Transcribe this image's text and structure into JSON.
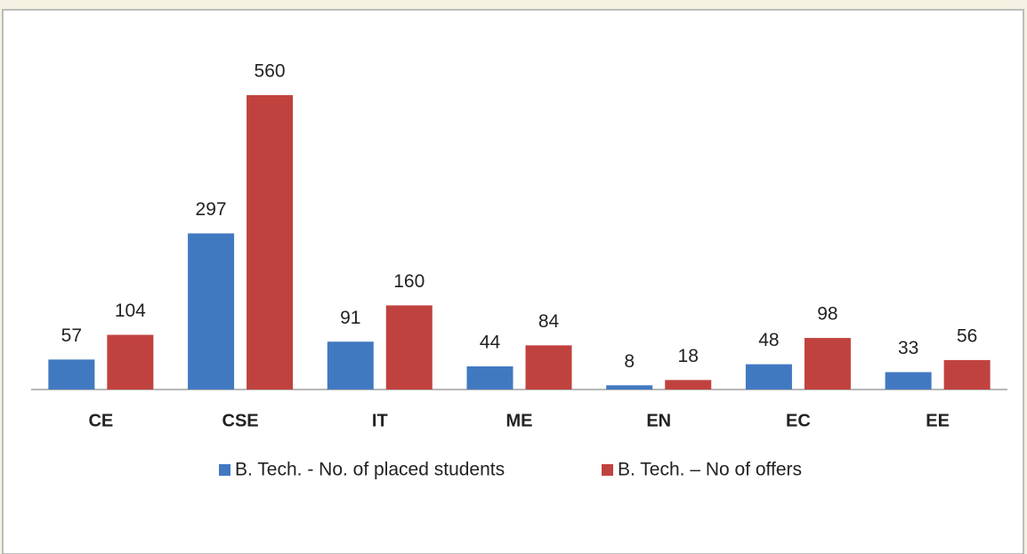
{
  "chart_data": {
    "type": "bar",
    "categories": [
      "CE",
      "CSE",
      "IT",
      "ME",
      "EN",
      "EC",
      "EE"
    ],
    "series": [
      {
        "name": "B. Tech. - No. of placed students",
        "color": "#4179c1",
        "values": [
          57,
          297,
          91,
          44,
          8,
          48,
          33
        ]
      },
      {
        "name": "B. Tech. – No of offers",
        "color": "#c0423f",
        "values": [
          104,
          560,
          160,
          84,
          18,
          98,
          56
        ]
      }
    ],
    "legend": "bottom"
  }
}
